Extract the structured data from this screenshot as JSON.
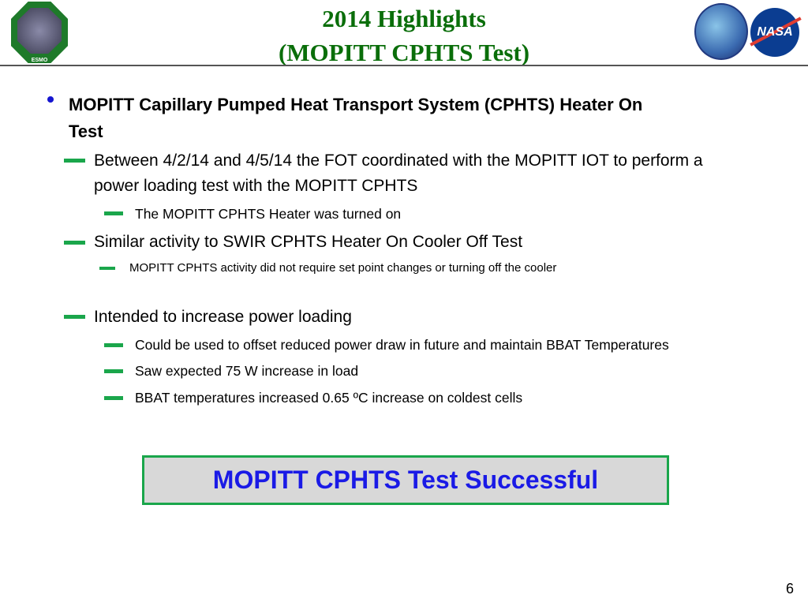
{
  "header": {
    "title_line1": "2014 Highlights",
    "title_line2": "(MOPITT CPHTS Test)",
    "left_logo_text": "ESMO",
    "right_logo_text": "NASA"
  },
  "colors": {
    "title": "#0a6e0a",
    "dash": "#1aa64b",
    "bullet": "#1515d0",
    "callout_text": "#1a1ae6",
    "callout_bg": "#d8d8d8"
  },
  "content": {
    "main_bullet_line1": "MOPITT Capillary Pumped Heat Transport System (CPHTS) Heater On",
    "main_bullet_line2": "Test",
    "items": [
      {
        "text": "Between 4/2/14 and 4/5/14 the FOT coordinated with the MOPITT IOT to perform a"
      },
      {
        "text": "power loading test with the MOPITT CPHTS"
      },
      {
        "text": "The MOPITT CPHTS Heater was turned on"
      },
      {
        "text": "Similar activity to SWIR CPHTS Heater On Cooler Off Test"
      },
      {
        "text": "MOPITT CPHTS activity did not require set point changes or turning off the cooler"
      },
      {
        "text": "Intended to increase power loading"
      },
      {
        "text": "Could be used to offset reduced power draw in future and maintain BBAT Temperatures"
      },
      {
        "text": "Saw expected 75 W increase in load"
      },
      {
        "text": "BBAT temperatures increased 0.65 ºC increase on coldest cells"
      }
    ]
  },
  "callout": "MOPITT CPHTS Test Successful",
  "page_number": "6"
}
